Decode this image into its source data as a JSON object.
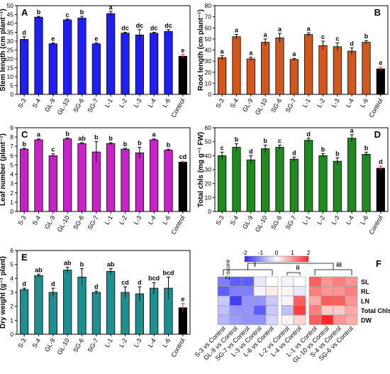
{
  "chart_data": [
    {
      "panel": "A",
      "type": "bar",
      "ylabel": "Stem length (cm plant⁻¹)",
      "ylim": [
        0,
        50
      ],
      "yticks": [
        0,
        5,
        10,
        15,
        20,
        25,
        30,
        35,
        40,
        45,
        50
      ],
      "categories": [
        "S-3",
        "S-4",
        "GL-9",
        "GL-10",
        "SG-6",
        "SG-7",
        "L-1",
        "L-2",
        "L-3",
        "L-4",
        "L-6",
        "Control"
      ],
      "values": [
        31,
        43.5,
        28.5,
        42,
        43,
        28.5,
        45.5,
        34.5,
        33.5,
        34.5,
        35.5,
        21.5
      ],
      "errors": [
        1.5,
        0.5,
        0.5,
        0.5,
        1,
        0.6,
        1.2,
        0.5,
        3,
        0.5,
        1,
        1
      ],
      "labels": [
        "d",
        "b",
        "e",
        "c",
        "b",
        "e",
        "a",
        "dc",
        "dc",
        "dc",
        "dc",
        "e"
      ],
      "color": "#1f1ff5",
      "control_color": "#000000"
    },
    {
      "panel": "B",
      "type": "bar",
      "ylabel": "Root length (cm plant⁻¹)",
      "ylim": [
        0,
        80
      ],
      "yticks": [
        0,
        10,
        20,
        30,
        40,
        50,
        60,
        70,
        80
      ],
      "categories": [
        "S-3",
        "S-4",
        "GL-9",
        "GL-10",
        "SG-6",
        "SG-7",
        "L-1",
        "L-2",
        "L-3",
        "L-4",
        "L-6",
        "Control"
      ],
      "values": [
        33,
        52,
        32,
        47,
        51,
        31.5,
        54,
        44,
        43,
        39,
        47,
        23
      ],
      "errors": [
        2,
        2,
        1.5,
        3,
        4,
        1,
        1.5,
        4,
        3.5,
        3,
        1.5,
        1.5
      ],
      "labels": [
        "a",
        "a",
        "a",
        "a",
        "a",
        "a",
        "a",
        "c",
        "c",
        "d",
        "b",
        "e"
      ],
      "color": "#d4571a",
      "control_color": "#000000"
    },
    {
      "panel": "C",
      "type": "bar",
      "ylabel": "Leaf number (plant⁻¹)",
      "ylim": [
        0,
        9
      ],
      "yticks": [
        0,
        1,
        2,
        3,
        4,
        5,
        6,
        7,
        8,
        9
      ],
      "categories": [
        "S-3",
        "S-4",
        "GL-9",
        "GL-10",
        "SG-6",
        "SG-7",
        "L-1",
        "L-2",
        "L-3",
        "L-4",
        "L-6",
        "Control"
      ],
      "values": [
        6.7,
        7.7,
        6.0,
        7.8,
        7.3,
        6.4,
        7.3,
        6.7,
        6.3,
        7.7,
        6.6,
        5.3
      ],
      "errors": [
        0.1,
        0.1,
        0.2,
        0.1,
        0.1,
        1.1,
        0.1,
        0.1,
        0.6,
        0.1,
        0.1,
        0.1
      ],
      "labels": [
        "b",
        "a",
        "c",
        "b",
        "ab",
        "b",
        "b",
        "b",
        "b",
        "a",
        "b",
        "cd"
      ],
      "color": "#c822c8",
      "control_color": "#000000"
    },
    {
      "panel": "D",
      "type": "bar",
      "ylabel": "Total chls (mg g⁻¹ FW)",
      "ylim": [
        0,
        60
      ],
      "yticks": [
        0,
        10,
        20,
        30,
        40,
        50,
        60
      ],
      "categories": [
        "S-3",
        "S-4",
        "GL-9",
        "GL-10",
        "SG-6",
        "SG-7",
        "L-1",
        "L-2",
        "L-3",
        "L-4",
        "L-6",
        "Control"
      ],
      "values": [
        40,
        46,
        37,
        45,
        46,
        37.5,
        51,
        40,
        36,
        52.5,
        41,
        31
      ],
      "errors": [
        2.5,
        2.5,
        3,
        2.5,
        1.5,
        1.5,
        1.5,
        1.5,
        2.5,
        2.5,
        1.5,
        1.5
      ],
      "labels": [
        "c",
        "b",
        "d",
        "b",
        "c",
        "d",
        "d",
        "b",
        "b",
        "a",
        "b",
        "d"
      ],
      "color": "#1f8a1f",
      "control_color": "#000000"
    },
    {
      "panel": "E",
      "type": "bar",
      "ylabel": "Dry weight (g⁻¹ plant)",
      "ylim": [
        0,
        6
      ],
      "yticks": [
        0,
        1,
        2,
        3,
        4,
        5,
        6
      ],
      "categories": [
        "S-3",
        "S-4",
        "GL-9",
        "GL-10",
        "SG-6",
        "SG-7",
        "L-1",
        "L-2",
        "L-3",
        "L-4",
        "L-6",
        "Control"
      ],
      "values": [
        3.2,
        4.2,
        3.0,
        4.6,
        4.1,
        3.0,
        4.5,
        3.0,
        2.9,
        3.3,
        3.3,
        1.9
      ],
      "errors": [
        0.1,
        0.1,
        0.3,
        0.2,
        0.6,
        0.1,
        0.2,
        0.4,
        0.5,
        0.4,
        0.8,
        0.3
      ],
      "labels": [
        "d",
        "ab",
        "d",
        "ab",
        "b",
        "d",
        "ab",
        "cd",
        "d",
        "bcd",
        "bcd",
        "e"
      ],
      "color": "#1c9090",
      "control_color": "#000000"
    },
    {
      "panel": "F",
      "type": "heatmap",
      "colorbar_title": "Z-score",
      "colorbar_ticks": [
        -2,
        -1,
        0,
        1,
        2
      ],
      "rows": [
        "SL",
        "RL",
        "LN",
        "Total Chls",
        "DW"
      ],
      "columns": [
        "S-3 vs Control",
        "GL-9 vs Control",
        "SG-7 vs Control",
        "L-3 vs Control",
        "L-6 vs Control",
        "L-2 vs Control",
        "L-4 vs Control",
        "L-1 vs Control",
        "GL-10 vs Control",
        "S-4 vs Control",
        "SG-6 vs Control"
      ],
      "cluster_labels": [
        "i",
        "ii",
        "iii"
      ],
      "values": [
        [
          -1.2,
          -1.5,
          -1.5,
          -0.2,
          0.0,
          -0.1,
          0.0,
          1.5,
          1.0,
          1.2,
          1.0
        ],
        [
          -1.5,
          -1.2,
          -1.2,
          -0.1,
          0.2,
          0.1,
          -0.2,
          1.2,
          1.0,
          1.0,
          1.2
        ],
        [
          -0.5,
          -1.8,
          -1.0,
          -1.0,
          -0.5,
          0.1,
          1.5,
          0.8,
          1.5,
          1.5,
          1.0
        ],
        [
          -0.6,
          -1.0,
          -1.0,
          -1.5,
          -0.5,
          -0.6,
          1.8,
          1.2,
          0.5,
          0.5,
          0.8
        ],
        [
          -0.7,
          -0.9,
          -1.0,
          -1.0,
          -0.4,
          0.1,
          0.4,
          1.5,
          2.0,
          1.0,
          0.8
        ]
      ]
    }
  ]
}
